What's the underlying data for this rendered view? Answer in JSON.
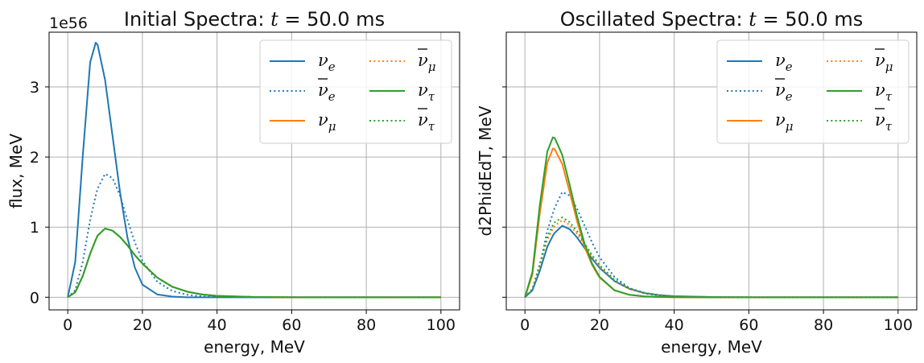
{
  "chart_data": [
    {
      "type": "line",
      "title": "Initial Spectra: t = 50.0 ms",
      "title_prefix": "Initial Spectra: ",
      "title_var": "t",
      "title_suffix": " = 50.0 ms",
      "xlabel": "energy, MeV",
      "ylabel": "flux, MeV",
      "y_offset_label": "1e56",
      "xlim": [
        -5,
        105
      ],
      "ylim": [
        -0.18,
        3.78
      ],
      "x_ticks": [
        0,
        20,
        40,
        60,
        80,
        100
      ],
      "y_ticks": [
        0,
        1,
        2,
        3
      ],
      "y_tick_labels": [
        "0",
        "1",
        "2",
        "3"
      ],
      "y_tick_labels_visible": true,
      "grid": true,
      "legend_position": "top-right",
      "legend_columns": 2,
      "x": [
        0,
        2,
        4,
        6,
        7.5,
        8,
        10,
        12,
        14,
        16,
        18,
        20,
        24,
        28,
        32,
        36,
        40,
        50,
        60,
        80,
        100
      ],
      "series": [
        {
          "name": "νe",
          "base": "ν",
          "sub": "e",
          "bar": false,
          "color": "#1f77b4",
          "dash": "solid",
          "values": [
            0,
            0.5,
            2.0,
            3.35,
            3.63,
            3.6,
            3.1,
            2.3,
            1.5,
            0.85,
            0.42,
            0.18,
            0.04,
            0.01,
            0,
            0,
            0,
            0,
            0,
            0,
            0
          ]
        },
        {
          "name": "ν̅e",
          "base": "ν",
          "sub": "e",
          "bar": true,
          "color": "#1f77b4",
          "dash": "dotted",
          "values": [
            0,
            0.1,
            0.5,
            1.1,
            1.45,
            1.55,
            1.76,
            1.7,
            1.45,
            1.1,
            0.78,
            0.52,
            0.22,
            0.09,
            0.035,
            0.012,
            0.004,
            0,
            0,
            0,
            0
          ]
        },
        {
          "name": "νμ",
          "base": "ν",
          "sub": "μ",
          "bar": false,
          "color": "#ff7f0e",
          "dash": "solid",
          "values": [
            0,
            0.07,
            0.3,
            0.62,
            0.82,
            0.88,
            0.98,
            0.95,
            0.86,
            0.74,
            0.6,
            0.48,
            0.28,
            0.15,
            0.08,
            0.04,
            0.02,
            0.004,
            0,
            0,
            0
          ]
        },
        {
          "name": "ν̅μ",
          "base": "ν",
          "sub": "μ",
          "bar": true,
          "color": "#ff7f0e",
          "dash": "dotted",
          "values": [
            0,
            0.07,
            0.3,
            0.62,
            0.82,
            0.88,
            0.98,
            0.95,
            0.86,
            0.74,
            0.6,
            0.48,
            0.28,
            0.15,
            0.08,
            0.04,
            0.02,
            0.004,
            0,
            0,
            0
          ]
        },
        {
          "name": "ντ",
          "base": "ν",
          "sub": "τ",
          "bar": false,
          "color": "#2ca02c",
          "dash": "solid",
          "values": [
            0,
            0.07,
            0.3,
            0.62,
            0.82,
            0.88,
            0.98,
            0.95,
            0.86,
            0.74,
            0.6,
            0.48,
            0.28,
            0.15,
            0.08,
            0.04,
            0.02,
            0.004,
            0,
            0,
            0
          ]
        },
        {
          "name": "ν̅τ",
          "base": "ν",
          "sub": "τ",
          "bar": true,
          "color": "#2ca02c",
          "dash": "dotted",
          "values": [
            0,
            0.07,
            0.3,
            0.62,
            0.82,
            0.88,
            0.98,
            0.95,
            0.86,
            0.74,
            0.6,
            0.48,
            0.28,
            0.15,
            0.08,
            0.04,
            0.02,
            0.004,
            0,
            0,
            0
          ]
        }
      ]
    },
    {
      "type": "line",
      "title": "Oscillated Spectra: t = 50.0 ms",
      "title_prefix": "Oscillated Spectra: ",
      "title_var": "t",
      "title_suffix": " = 50.0 ms",
      "xlabel": "energy, MeV",
      "ylabel": "d2PhidEdT, MeV",
      "y_offset_label": "",
      "xlim": [
        -5,
        105
      ],
      "ylim": [
        -0.18,
        3.78
      ],
      "x_ticks": [
        0,
        20,
        40,
        60,
        80,
        100
      ],
      "y_ticks": [
        0,
        1,
        2,
        3
      ],
      "y_tick_labels": [
        "",
        "",
        "",
        ""
      ],
      "y_tick_labels_visible": false,
      "grid": true,
      "legend_position": "top-right",
      "legend_columns": 2,
      "x": [
        0,
        2,
        4,
        6,
        7.5,
        8,
        10,
        12,
        14,
        16,
        18,
        20,
        24,
        28,
        32,
        36,
        40,
        50,
        60,
        80,
        100
      ],
      "series": [
        {
          "name": "νe",
          "base": "ν",
          "sub": "e",
          "bar": false,
          "color": "#1f77b4",
          "dash": "solid",
          "values": [
            0,
            0.1,
            0.38,
            0.72,
            0.88,
            0.92,
            1.02,
            0.97,
            0.85,
            0.7,
            0.55,
            0.42,
            0.23,
            0.12,
            0.06,
            0.03,
            0.015,
            0.003,
            0,
            0,
            0
          ]
        },
        {
          "name": "ν̅e",
          "base": "ν",
          "sub": "e",
          "bar": true,
          "color": "#1f77b4",
          "dash": "dotted",
          "values": [
            0,
            0.1,
            0.45,
            0.95,
            1.2,
            1.28,
            1.5,
            1.45,
            1.26,
            1.02,
            0.78,
            0.57,
            0.29,
            0.13,
            0.055,
            0.022,
            0.009,
            0.001,
            0,
            0,
            0
          ]
        },
        {
          "name": "νμ",
          "base": "ν",
          "sub": "μ",
          "bar": false,
          "color": "#ff7f0e",
          "dash": "solid",
          "values": [
            0,
            0.32,
            1.2,
            1.92,
            2.12,
            2.11,
            1.9,
            1.5,
            1.08,
            0.72,
            0.46,
            0.28,
            0.1,
            0.035,
            0.012,
            0.004,
            0.001,
            0,
            0,
            0,
            0
          ]
        },
        {
          "name": "ν̅μ",
          "base": "ν",
          "sub": "μ",
          "bar": true,
          "color": "#ff7f0e",
          "dash": "dotted",
          "values": [
            0,
            0.12,
            0.45,
            0.82,
            0.98,
            1.02,
            1.1,
            1.03,
            0.9,
            0.74,
            0.58,
            0.44,
            0.24,
            0.12,
            0.06,
            0.03,
            0.014,
            0.002,
            0,
            0,
            0
          ]
        },
        {
          "name": "ντ",
          "base": "ν",
          "sub": "τ",
          "bar": false,
          "color": "#2ca02c",
          "dash": "solid",
          "values": [
            0,
            0.36,
            1.32,
            2.08,
            2.28,
            2.27,
            2.03,
            1.6,
            1.15,
            0.76,
            0.48,
            0.29,
            0.1,
            0.035,
            0.012,
            0.004,
            0.001,
            0,
            0,
            0,
            0
          ]
        },
        {
          "name": "ν̅τ",
          "base": "ν",
          "sub": "τ",
          "bar": true,
          "color": "#2ca02c",
          "dash": "dotted",
          "values": [
            0,
            0.12,
            0.48,
            0.86,
            1.03,
            1.07,
            1.14,
            1.07,
            0.94,
            0.77,
            0.6,
            0.46,
            0.25,
            0.13,
            0.065,
            0.032,
            0.015,
            0.002,
            0,
            0,
            0
          ]
        }
      ]
    }
  ]
}
